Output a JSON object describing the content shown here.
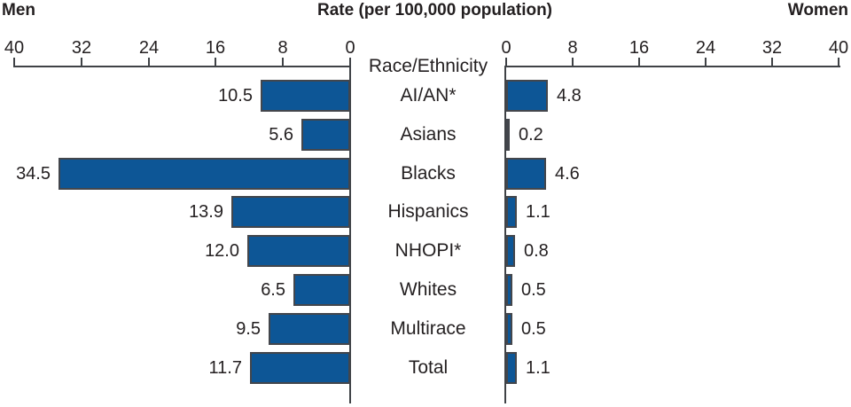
{
  "header": {
    "left": "Men",
    "title": "Rate (per 100,000 population)",
    "right": "Women"
  },
  "center_label": "Race/Ethnicity",
  "chart_data": {
    "type": "bar",
    "subtype": "bidirectional-horizontal (population pyramid style)",
    "title": "Rate (per 100,000 population)",
    "categories": [
      "AI/AN*",
      "Asians",
      "Blacks",
      "Hispanics",
      "NHOPI*",
      "Whites",
      "Multirace",
      "Total"
    ],
    "series": [
      {
        "name": "Men",
        "side": "left",
        "values": [
          10.5,
          5.6,
          34.5,
          13.9,
          12.0,
          6.5,
          9.5,
          11.7
        ],
        "labels": [
          "10.5",
          "5.6",
          "34.5",
          "13.9",
          "12.0",
          "6.5",
          "9.5",
          "11.7"
        ]
      },
      {
        "name": "Women",
        "side": "right",
        "values": [
          4.8,
          0.2,
          4.6,
          1.1,
          0.8,
          0.5,
          0.5,
          1.1
        ],
        "labels": [
          "4.8",
          "0.2",
          "4.6",
          "1.1",
          "0.8",
          "0.5",
          "0.5",
          "1.1"
        ]
      }
    ],
    "axis": {
      "min": 0,
      "max": 40,
      "ticks": [
        0,
        8,
        16,
        24,
        32,
        40
      ],
      "category_axis_label": "Race/Ethnicity"
    },
    "legend": "none",
    "grid": false,
    "colors": {
      "bar_fill": "#0d5696",
      "bar_border": "#43464c",
      "axis_line": "#3f4246",
      "text": "#231f20"
    }
  }
}
